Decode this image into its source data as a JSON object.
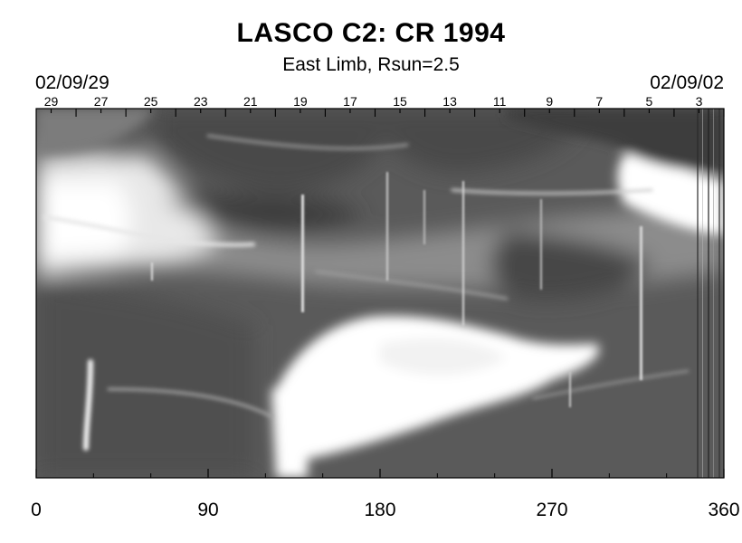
{
  "header": {
    "title": "LASCO C2: CR 1994",
    "subtitle": "East Limb, Rsun=2.5",
    "date_left": "02/09/29",
    "date_right": "02/09/02"
  },
  "top_axis": {
    "day_labels": [
      "29",
      "27",
      "25",
      "23",
      "21",
      "19",
      "17",
      "15",
      "13",
      "11",
      "9",
      "7",
      "5",
      "3"
    ]
  },
  "chart_data": {
    "type": "heatmap",
    "title": "LASCO C2: CR 1994",
    "subtitle": "East Limb, Rsun=2.5",
    "xlim": [
      0,
      360
    ],
    "x_ticks": [
      0,
      90,
      180,
      270,
      360
    ],
    "x_tick_labels": [
      "0",
      "90",
      "180",
      "270",
      "360"
    ],
    "colormap": "grayscale"
  }
}
